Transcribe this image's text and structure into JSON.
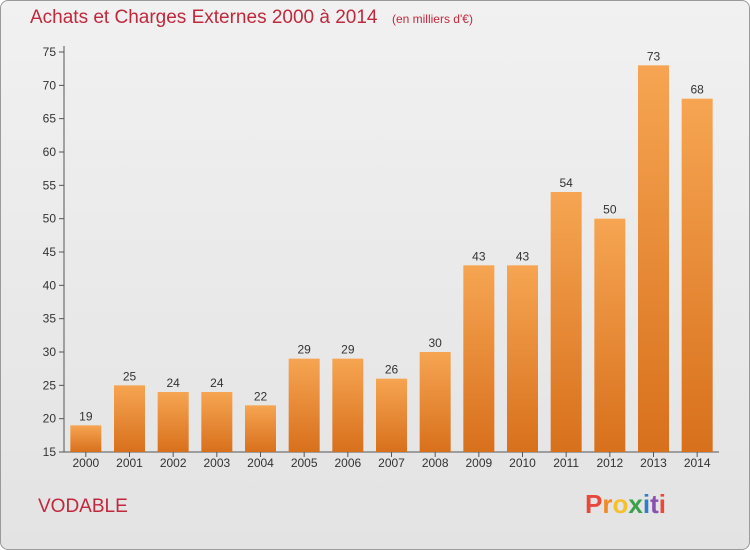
{
  "title": "Achats et Charges Externes 2000 à 2014",
  "unit": "(en milliers d'€)",
  "commune": "VODABLE",
  "logo": {
    "text": "Proxiti"
  },
  "chart_data": {
    "type": "bar",
    "title": "Achats et Charges Externes 2000 à 2014",
    "subtitle": "(en milliers d'€)",
    "xlabel": "",
    "ylabel": "",
    "categories": [
      "2000",
      "2001",
      "2002",
      "2003",
      "2004",
      "2005",
      "2006",
      "2007",
      "2008",
      "2009",
      "2010",
      "2011",
      "2012",
      "2013",
      "2014"
    ],
    "values": [
      19,
      25,
      24,
      24,
      22,
      29,
      29,
      26,
      30,
      43,
      43,
      54,
      50,
      73,
      68
    ],
    "ylim": [
      15,
      75
    ],
    "yticks": [
      15,
      20,
      25,
      30,
      35,
      40,
      45,
      50,
      55,
      60,
      65,
      70,
      75
    ],
    "grid": false,
    "data_labels": true,
    "colors": {
      "bar_top": "#f6a552",
      "bar_bottom": "#d8701c",
      "title": "#c0283c"
    }
  }
}
